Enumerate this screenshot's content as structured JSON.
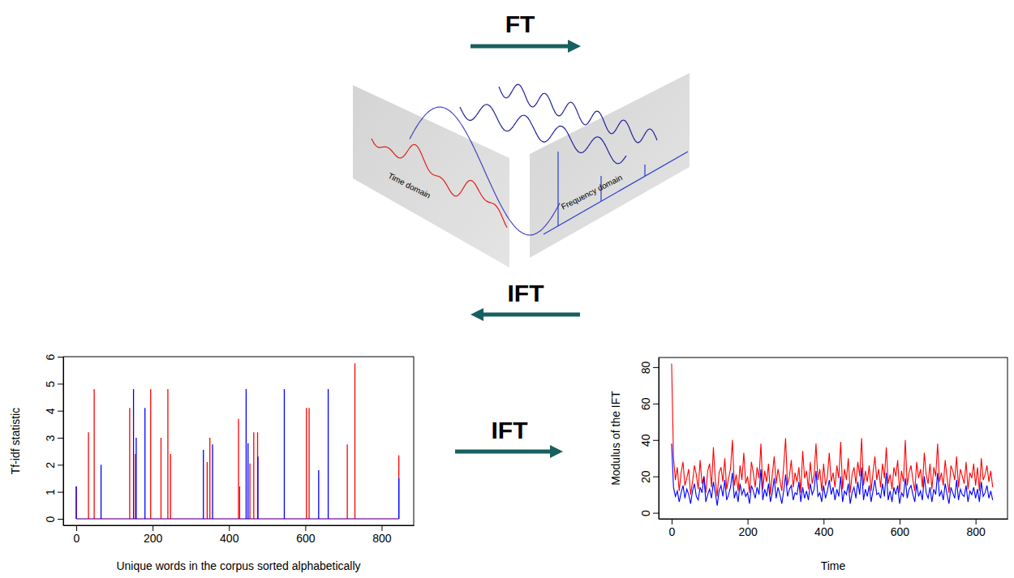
{
  "diagram": {
    "top_arrow": "FT",
    "bottom_arrow": "IFT",
    "middle_arrow": "IFT",
    "left_panel": "Time domain",
    "right_panel": "Frequency domain"
  },
  "chart_data": [
    {
      "type": "spike",
      "xlabel": "Unique words in the corpus sorted alphabetically",
      "ylabel": "Tf-idf statistic",
      "xlim": [
        -34,
        884
      ],
      "ylim": [
        -0.24,
        6
      ],
      "xticks": [
        0,
        200,
        400,
        600,
        800
      ],
      "yticks": [
        0,
        1,
        2,
        3,
        4,
        5,
        6
      ],
      "series": [
        {
          "color": "#ff0000",
          "x": [
            0,
            32,
            47,
            140,
            155,
            195,
            222,
            240,
            247,
            343,
            350,
            425,
            428,
            455,
            465,
            475,
            603,
            610,
            710,
            730,
            845
          ],
          "values": [
            1.2,
            3.2,
            4.8,
            4.1,
            2.4,
            4.8,
            3,
            4.8,
            2.4,
            2.1,
            3,
            3.7,
            1.2,
            2.05,
            3.2,
            3.2,
            4.1,
            4.1,
            2.75,
            5.75,
            2.35
          ]
        },
        {
          "color": "#0000ff",
          "x": [
            0,
            65,
            150,
            157,
            180,
            333,
            357,
            445,
            450,
            476,
            545,
            635,
            660,
            845
          ],
          "values": [
            1.2,
            2,
            4.8,
            3,
            4.1,
            2.55,
            2.75,
            4.8,
            2.8,
            2.3,
            4.8,
            1.8,
            4.8,
            1.5
          ]
        }
      ]
    },
    {
      "type": "line",
      "xlabel": "Time",
      "ylabel": "Modulus of the IFT",
      "xlim": [
        -34,
        884
      ],
      "ylim": [
        -3.3,
        85.3
      ],
      "xticks": [
        0,
        200,
        400,
        600,
        800
      ],
      "yticks": [
        0,
        20,
        40,
        60,
        80
      ],
      "x": [
        0,
        5,
        10,
        15,
        20,
        25,
        30,
        35,
        40,
        45,
        50,
        55,
        60,
        65,
        70,
        75,
        80,
        85,
        90,
        95,
        100,
        105,
        110,
        115,
        120,
        125,
        130,
        135,
        140,
        145,
        150,
        155,
        160,
        165,
        170,
        175,
        180,
        185,
        190,
        195,
        200,
        205,
        210,
        215,
        220,
        225,
        230,
        235,
        240,
        245,
        250,
        255,
        260,
        265,
        270,
        275,
        280,
        285,
        290,
        295,
        300,
        305,
        310,
        315,
        320,
        325,
        330,
        335,
        340,
        345,
        350,
        355,
        360,
        365,
        370,
        375,
        380,
        385,
        390,
        395,
        400,
        405,
        410,
        415,
        420,
        425,
        430,
        435,
        440,
        445,
        450,
        455,
        460,
        465,
        470,
        475,
        480,
        485,
        490,
        495,
        500,
        505,
        510,
        515,
        520,
        525,
        530,
        535,
        540,
        545,
        550,
        555,
        560,
        565,
        570,
        575,
        580,
        585,
        590,
        595,
        600,
        605,
        610,
        615,
        620,
        625,
        630,
        635,
        640,
        645,
        650,
        655,
        660,
        665,
        670,
        675,
        680,
        685,
        690,
        695,
        700,
        705,
        710,
        715,
        720,
        725,
        730,
        735,
        740,
        745,
        750,
        755,
        760,
        765,
        770,
        775,
        780,
        785,
        790,
        795,
        800,
        805,
        810,
        815,
        820,
        825,
        830,
        835,
        840,
        845
      ],
      "series": [
        {
          "color": "#ff0000",
          "values": [
            82,
            30,
            18,
            25,
            12,
            22,
            28,
            15,
            19,
            24,
            10,
            17,
            26,
            21,
            13,
            29,
            16,
            20,
            11,
            23,
            27,
            14,
            36,
            18,
            9,
            22,
            25,
            17,
            30,
            13,
            19,
            24,
            40,
            15,
            21,
            12,
            26,
            18,
            33,
            16,
            20,
            11,
            28,
            22,
            14,
            25,
            19,
            38,
            13,
            23,
            17,
            27,
            10,
            21,
            31,
            16,
            24,
            18,
            12,
            26,
            41,
            15,
            20,
            29,
            14,
            22,
            17,
            25,
            11,
            34,
            19,
            23,
            13,
            28,
            16,
            21,
            38,
            18,
            24,
            12,
            27,
            15,
            20,
            33,
            17,
            22,
            14,
            26,
            19,
            39,
            13,
            24,
            18,
            30,
            11,
            21,
            25,
            16,
            28,
            20,
            41,
            15,
            23,
            17,
            26,
            12,
            22,
            31,
            18,
            24,
            14,
            27,
            19,
            36,
            16,
            21,
            13,
            25,
            20,
            29,
            11,
            23,
            17,
            40,
            15,
            22,
            26,
            18,
            12,
            28,
            19,
            24,
            14,
            33,
            21,
            16,
            27,
            13,
            25,
            20,
            38,
            17,
            22,
            15,
            29,
            19,
            11,
            26,
            23,
            18,
            31,
            14,
            24,
            20,
            16,
            28,
            13,
            22,
            19,
            27,
            15,
            25,
            12,
            30,
            18,
            21,
            26,
            17,
            23,
            14
          ]
        },
        {
          "color": "#0000ff",
          "values": [
            38,
            14,
            9,
            12,
            6,
            11,
            15,
            8,
            13,
            10,
            5,
            12,
            16,
            9,
            7,
            14,
            11,
            20,
            6,
            10,
            13,
            8,
            17,
            11,
            4,
            12,
            15,
            9,
            18,
            7,
            10,
            14,
            22,
            8,
            12,
            6,
            16,
            10,
            13,
            9,
            11,
            5,
            15,
            12,
            8,
            14,
            10,
            24,
            7,
            13,
            9,
            16,
            6,
            11,
            19,
            8,
            14,
            10,
            5,
            12,
            21,
            9,
            13,
            15,
            7,
            11,
            10,
            17,
            6,
            14,
            8,
            12,
            7,
            16,
            10,
            13,
            23,
            9,
            11,
            6,
            15,
            8,
            12,
            18,
            10,
            14,
            7,
            13,
            9,
            20,
            6,
            12,
            10,
            16,
            5,
            11,
            14,
            8,
            17,
            10,
            25,
            7,
            13,
            9,
            15,
            6,
            12,
            18,
            10,
            11,
            8,
            16,
            9,
            22,
            7,
            12,
            6,
            14,
            10,
            15,
            5,
            11,
            9,
            19,
            8,
            13,
            15,
            10,
            6,
            16,
            9,
            12,
            7,
            20,
            11,
            8,
            14,
            6,
            13,
            10,
            22,
            9,
            12,
            7,
            16,
            10,
            5,
            14,
            11,
            8,
            18,
            7,
            13,
            10,
            9,
            15,
            6,
            12,
            10,
            14,
            8,
            13,
            6,
            17,
            9,
            11,
            15,
            8,
            12,
            7
          ]
        }
      ]
    }
  ]
}
